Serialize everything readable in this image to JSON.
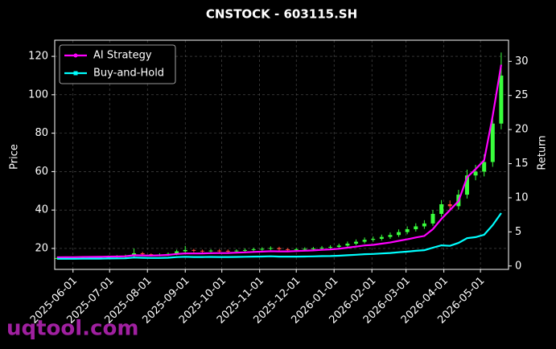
{
  "chart_data": {
    "type": "candlestick",
    "title": "CNSTOCK - 603115.SH",
    "ylabel": "Price",
    "y2label": "Return",
    "x": [
      "2025-05-19",
      "2025-05-26",
      "2025-06-02",
      "2025-06-09",
      "2025-06-16",
      "2025-06-23",
      "2025-06-30",
      "2025-07-07",
      "2025-07-14",
      "2025-07-21",
      "2025-07-28",
      "2025-08-04",
      "2025-08-11",
      "2025-08-18",
      "2025-08-25",
      "2025-09-01",
      "2025-09-08",
      "2025-09-15",
      "2025-09-22",
      "2025-09-29",
      "2025-10-06",
      "2025-10-13",
      "2025-10-20",
      "2025-10-27",
      "2025-11-03",
      "2025-11-10",
      "2025-11-17",
      "2025-11-24",
      "2025-12-01",
      "2025-12-08",
      "2025-12-15",
      "2025-12-22",
      "2025-12-29",
      "2026-01-05",
      "2026-01-12",
      "2026-01-19",
      "2026-01-26",
      "2026-02-02",
      "2026-02-09",
      "2026-02-16",
      "2026-02-23",
      "2026-03-02",
      "2026-03-09",
      "2026-03-16",
      "2026-03-23",
      "2026-03-30",
      "2026-04-06",
      "2026-04-13",
      "2026-04-20",
      "2026-04-27",
      "2026-05-04",
      "2026-05-11",
      "2026-05-18"
    ],
    "open": [
      14.9,
      15.0,
      15.1,
      15.0,
      15.2,
      15.3,
      15.4,
      15.6,
      15.8,
      16.0,
      17.5,
      17.0,
      16.6,
      16.8,
      17.2,
      18.5,
      19.2,
      18.8,
      18.7,
      18.9,
      18.8,
      18.7,
      18.9,
      19.2,
      19.6,
      19.8,
      20.2,
      19.6,
      19.4,
      19.6,
      19.8,
      20.0,
      20.4,
      20.8,
      21.5,
      22.5,
      23.5,
      24.5,
      25.0,
      26.0,
      27.0,
      28.5,
      30.0,
      31.5,
      33.0,
      38.0,
      43.0,
      42.0,
      48.0,
      58.0,
      60.0,
      65.0,
      85.0
    ],
    "high": [
      15.6,
      15.8,
      15.7,
      15.8,
      15.9,
      16.0,
      16.3,
      16.5,
      16.8,
      20.0,
      18.2,
      17.4,
      17.5,
      17.9,
      19.4,
      21.3,
      19.8,
      19.4,
      19.6,
      19.6,
      19.5,
      19.6,
      20.0,
      20.4,
      20.6,
      21.1,
      20.9,
      20.2,
      20.3,
      20.6,
      20.8,
      21.3,
      21.7,
      22.5,
      23.6,
      24.7,
      25.7,
      26.2,
      27.2,
      28.3,
      29.9,
      31.5,
      33.1,
      34.7,
      40.0,
      45.2,
      45.0,
      50.5,
      61.0,
      63.5,
      69.0,
      90.0,
      122.0
    ],
    "low": [
      14.3,
      14.4,
      14.4,
      14.4,
      14.5,
      14.6,
      14.7,
      14.9,
      15.1,
      15.3,
      16.2,
      15.8,
      15.9,
      16.1,
      16.5,
      17.7,
      18.0,
      17.9,
      18.0,
      18.0,
      17.9,
      17.9,
      18.2,
      18.5,
      18.8,
      19.1,
      18.8,
      18.6,
      18.7,
      18.9,
      19.1,
      19.3,
      19.6,
      20.1,
      20.8,
      21.7,
      22.6,
      23.5,
      24.1,
      25.0,
      26.0,
      27.4,
      28.8,
      30.2,
      31.8,
      36.5,
      39.5,
      40.2,
      46.0,
      55.5,
      57.5,
      62.5,
      82.0
    ],
    "close": [
      15.0,
      15.1,
      15.0,
      15.2,
      15.3,
      15.4,
      15.6,
      15.8,
      16.0,
      17.5,
      17.0,
      16.6,
      16.8,
      17.2,
      18.5,
      19.2,
      18.8,
      18.7,
      18.9,
      18.8,
      18.7,
      18.9,
      19.2,
      19.6,
      19.8,
      20.2,
      19.6,
      19.4,
      19.6,
      19.8,
      20.0,
      20.4,
      20.8,
      21.5,
      22.5,
      23.5,
      24.5,
      25.0,
      26.0,
      27.0,
      28.5,
      30.0,
      31.5,
      33.0,
      38.0,
      43.0,
      42.0,
      48.0,
      58.0,
      60.0,
      65.0,
      85.0,
      110.0
    ],
    "up_color": "#39ff3c",
    "down_color": "#ff4a3d",
    "series": [
      {
        "name": "AI Strategy",
        "color": "#ff00ff",
        "axis": "y2",
        "values": [
          1.27,
          1.28,
          1.29,
          1.31,
          1.33,
          1.34,
          1.37,
          1.39,
          1.42,
          1.57,
          1.55,
          1.53,
          1.56,
          1.62,
          1.76,
          1.85,
          1.83,
          1.85,
          1.88,
          1.89,
          1.91,
          1.95,
          2.0,
          2.06,
          2.1,
          2.17,
          2.14,
          2.14,
          2.19,
          2.23,
          2.28,
          2.36,
          2.42,
          2.53,
          2.68,
          2.84,
          3.01,
          3.1,
          3.27,
          3.44,
          3.69,
          3.91,
          4.18,
          4.41,
          5.39,
          6.9,
          8.2,
          9.5,
          13.0,
          14.2,
          15.5,
          22.0,
          29.5
        ]
      },
      {
        "name": "Buy-and-Hold",
        "color": "#00ffff",
        "axis": "y2",
        "values": [
          1.06,
          1.06,
          1.06,
          1.07,
          1.08,
          1.08,
          1.1,
          1.11,
          1.13,
          1.23,
          1.2,
          1.17,
          1.18,
          1.21,
          1.3,
          1.35,
          1.32,
          1.32,
          1.33,
          1.32,
          1.32,
          1.33,
          1.35,
          1.38,
          1.39,
          1.42,
          1.38,
          1.37,
          1.38,
          1.39,
          1.41,
          1.44,
          1.46,
          1.51,
          1.58,
          1.65,
          1.73,
          1.76,
          1.83,
          1.9,
          2.01,
          2.11,
          2.22,
          2.32,
          2.68,
          3.03,
          2.96,
          3.38,
          4.08,
          4.23,
          4.58,
          5.99,
          7.75
        ]
      }
    ],
    "xlim": [
      "2025-05-17",
      "2026-05-24"
    ],
    "xticks": [
      "2025-06-01",
      "2025-07-01",
      "2025-08-01",
      "2025-09-01",
      "2025-10-01",
      "2025-11-01",
      "2025-12-01",
      "2026-01-01",
      "2026-02-01",
      "2026-03-01",
      "2026-04-01",
      "2026-05-01"
    ],
    "ylim": [
      9.1,
      128.4
    ],
    "yticks": [
      20,
      40,
      60,
      80,
      100,
      120
    ],
    "y2lim": [
      -0.5,
      33.1
    ],
    "y2ticks": [
      0,
      5,
      10,
      15,
      20,
      25,
      30
    ],
    "grid": true,
    "legend": "upper left"
  },
  "watermark": "uqtool.com"
}
